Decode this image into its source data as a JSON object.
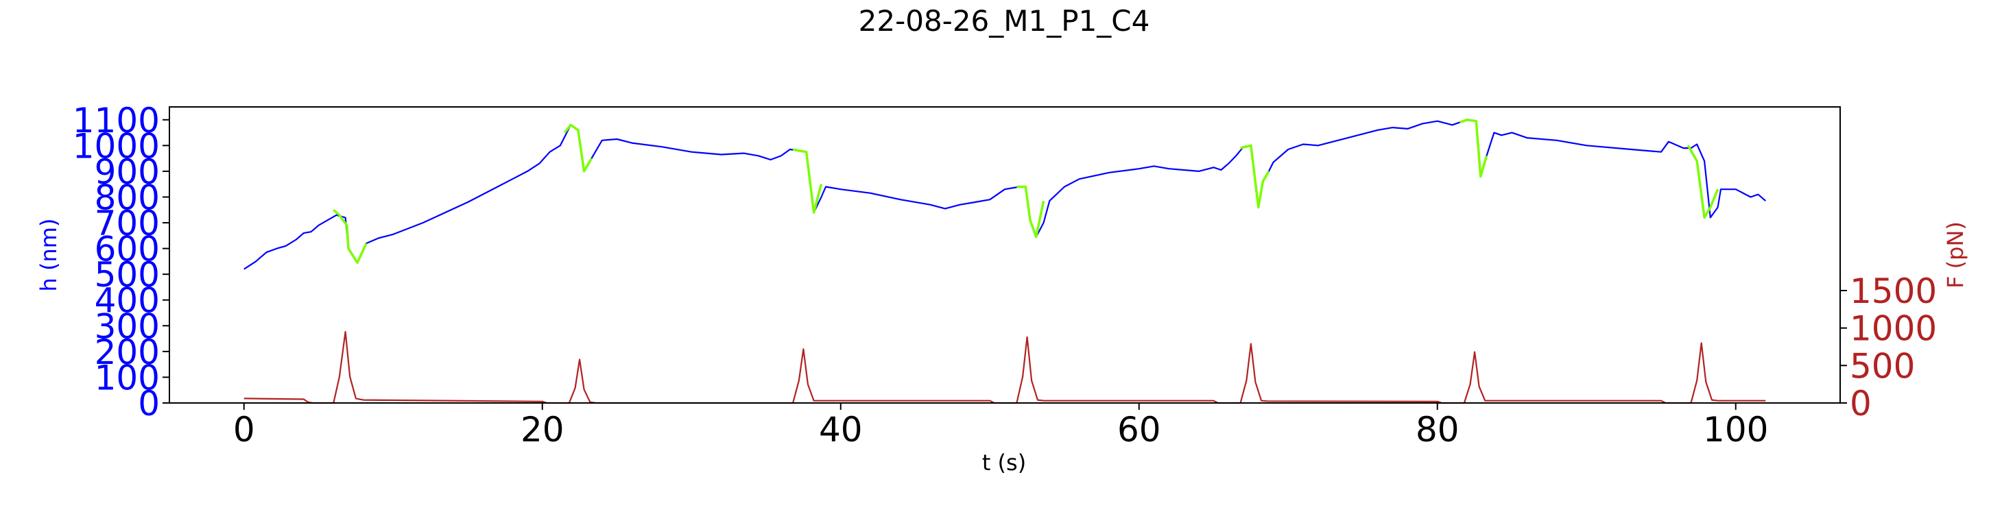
{
  "chart_data": {
    "type": "line",
    "title": "22-08-26_M1_P1_C4",
    "xlabel": "t (s)",
    "ylabel_left": "h (nm)",
    "ylabel_right": "F (pN)",
    "xlim": [
      -5,
      107
    ],
    "ylim_left": [
      0,
      1150
    ],
    "ylim_right": [
      0,
      3950
    ],
    "x_ticks": [
      0,
      20,
      40,
      60,
      80,
      100
    ],
    "y_ticks_left": [
      0,
      100,
      200,
      300,
      400,
      500,
      600,
      700,
      800,
      900,
      1000,
      1100
    ],
    "y_ticks_right": [
      0,
      500,
      1000,
      1500
    ],
    "colors": {
      "height": "#0000ff",
      "height_highlight": "#7cfc00",
      "force": "#b22222",
      "left_axis": "#0000ff",
      "right_axis": "#b22222"
    },
    "series": [
      {
        "axis": "left",
        "color": "#0000ff",
        "x": [
          0,
          0.8,
          1.5,
          2.2,
          2.8,
          3.5,
          4.0,
          4.5,
          5.0,
          5.6,
          6.2,
          6.8,
          7.0,
          7.6,
          8.2,
          9.0,
          10.0,
          12.0,
          15.0,
          17.0,
          18.0,
          19.0,
          19.8,
          20.5,
          21.2,
          21.9,
          22.4,
          22.8,
          23.3,
          24.0,
          25.0,
          26.0,
          28.0,
          30.0,
          32.0,
          33.5,
          34.5,
          35.3,
          36.0,
          36.6,
          37.2,
          37.7,
          38.2,
          38.7,
          39.0,
          40.0,
          42.0,
          44.0,
          46.0,
          47.0,
          48.0,
          49.0,
          50.0,
          51.0,
          52.0,
          52.4,
          52.7,
          53.1,
          53.6,
          54.0,
          55.0,
          56.0,
          58.0,
          60.0,
          61.0,
          62.0,
          63.0,
          64.0,
          65.0,
          65.5,
          66.0,
          66.5,
          67.0,
          67.5,
          68.0,
          68.3,
          68.7,
          69.0,
          70.0,
          71.0,
          72.0,
          74.0,
          76.0,
          77.0,
          78.0,
          79.0,
          80.0,
          81.0,
          82.0,
          82.6,
          82.9,
          83.3,
          83.8,
          84.3,
          85.0,
          86.0,
          88.0,
          90.0,
          93.0,
          94.0,
          95.0,
          95.5,
          96.5,
          97.0,
          97.4,
          97.9,
          98.3,
          98.8,
          99.0,
          100.0,
          101.0,
          101.5,
          102.0
        ],
        "y": [
          520,
          550,
          585,
          600,
          610,
          635,
          660,
          665,
          690,
          710,
          730,
          720,
          600,
          545,
          620,
          640,
          655,
          700,
          780,
          840,
          870,
          900,
          930,
          975,
          1000,
          1080,
          1060,
          900,
          950,
          1020,
          1025,
          1010,
          995,
          975,
          965,
          970,
          960,
          945,
          960,
          985,
          980,
          975,
          740,
          800,
          840,
          830,
          815,
          790,
          770,
          755,
          770,
          780,
          790,
          830,
          840,
          840,
          710,
          645,
          700,
          785,
          840,
          870,
          895,
          910,
          920,
          910,
          905,
          900,
          915,
          905,
          930,
          960,
          995,
          1000,
          760,
          860,
          900,
          935,
          985,
          1005,
          1000,
          1030,
          1060,
          1070,
          1065,
          1085,
          1095,
          1080,
          1100,
          1095,
          880,
          960,
          1050,
          1040,
          1050,
          1030,
          1020,
          1000,
          985,
          980,
          975,
          1015,
          990,
          990,
          1005,
          940,
          720,
          760,
          830,
          830,
          800,
          810,
          785
        ]
      },
      {
        "axis": "left",
        "color": "#7cfc00",
        "segments": [
          {
            "x": [
              6.0,
              6.4,
              6.9,
              7.0,
              7.6,
              8.2
            ],
            "y": [
              750,
              730,
              690,
              600,
              545,
              620
            ]
          },
          {
            "x": [
              21.5,
              21.9,
              22.4,
              22.8,
              23.3
            ],
            "y": [
              1050,
              1080,
              1060,
              900,
              950
            ]
          },
          {
            "x": [
              36.8,
              37.2,
              37.7,
              38.2,
              38.7
            ],
            "y": [
              985,
              980,
              975,
              740,
              850
            ]
          },
          {
            "x": [
              51.8,
              52.4,
              52.7,
              53.1,
              53.6
            ],
            "y": [
              840,
              840,
              710,
              645,
              785
            ]
          },
          {
            "x": [
              66.8,
              67.5,
              68.0,
              68.3,
              68.7
            ],
            "y": [
              990,
              1000,
              760,
              860,
              900
            ]
          },
          {
            "x": [
              81.5,
              82.0,
              82.6,
              82.9,
              83.3
            ],
            "y": [
              1090,
              1100,
              1095,
              880,
              960
            ]
          },
          {
            "x": [
              96.8,
              97.4,
              97.9,
              98.3,
              98.8
            ],
            "y": [
              1000,
              940,
              720,
              760,
              830
            ]
          }
        ]
      },
      {
        "axis": "right",
        "color": "#b22222",
        "x": [
          0,
          4.0,
          4.3,
          4.6,
          6.0,
          6.4,
          6.8,
          7.1,
          7.5,
          8.0,
          20.0,
          20.3,
          21.8,
          22.2,
          22.5,
          22.8,
          23.2,
          23.6,
          35.0,
          35.3,
          36.8,
          37.2,
          37.5,
          37.8,
          38.2,
          38.6,
          50.0,
          50.3,
          51.8,
          52.2,
          52.5,
          52.8,
          53.2,
          53.6,
          65.0,
          65.3,
          66.8,
          67.2,
          67.5,
          67.8,
          68.2,
          68.6,
          80.0,
          80.3,
          81.8,
          82.2,
          82.5,
          82.8,
          83.2,
          83.6,
          95.0,
          95.3,
          97.0,
          97.4,
          97.7,
          98.0,
          98.4,
          98.8,
          102.0
        ],
        "y": [
          60,
          50,
          10,
          0,
          0,
          350,
          950,
          350,
          60,
          40,
          20,
          0,
          0,
          200,
          580,
          180,
          10,
          0,
          0,
          0,
          0,
          300,
          720,
          250,
          30,
          30,
          30,
          0,
          0,
          350,
          880,
          300,
          40,
          30,
          30,
          0,
          0,
          300,
          790,
          280,
          30,
          25,
          20,
          0,
          0,
          250,
          680,
          220,
          30,
          30,
          30,
          0,
          0,
          300,
          800,
          280,
          40,
          30,
          30
        ]
      }
    ],
    "grid": false,
    "legend": "none"
  }
}
